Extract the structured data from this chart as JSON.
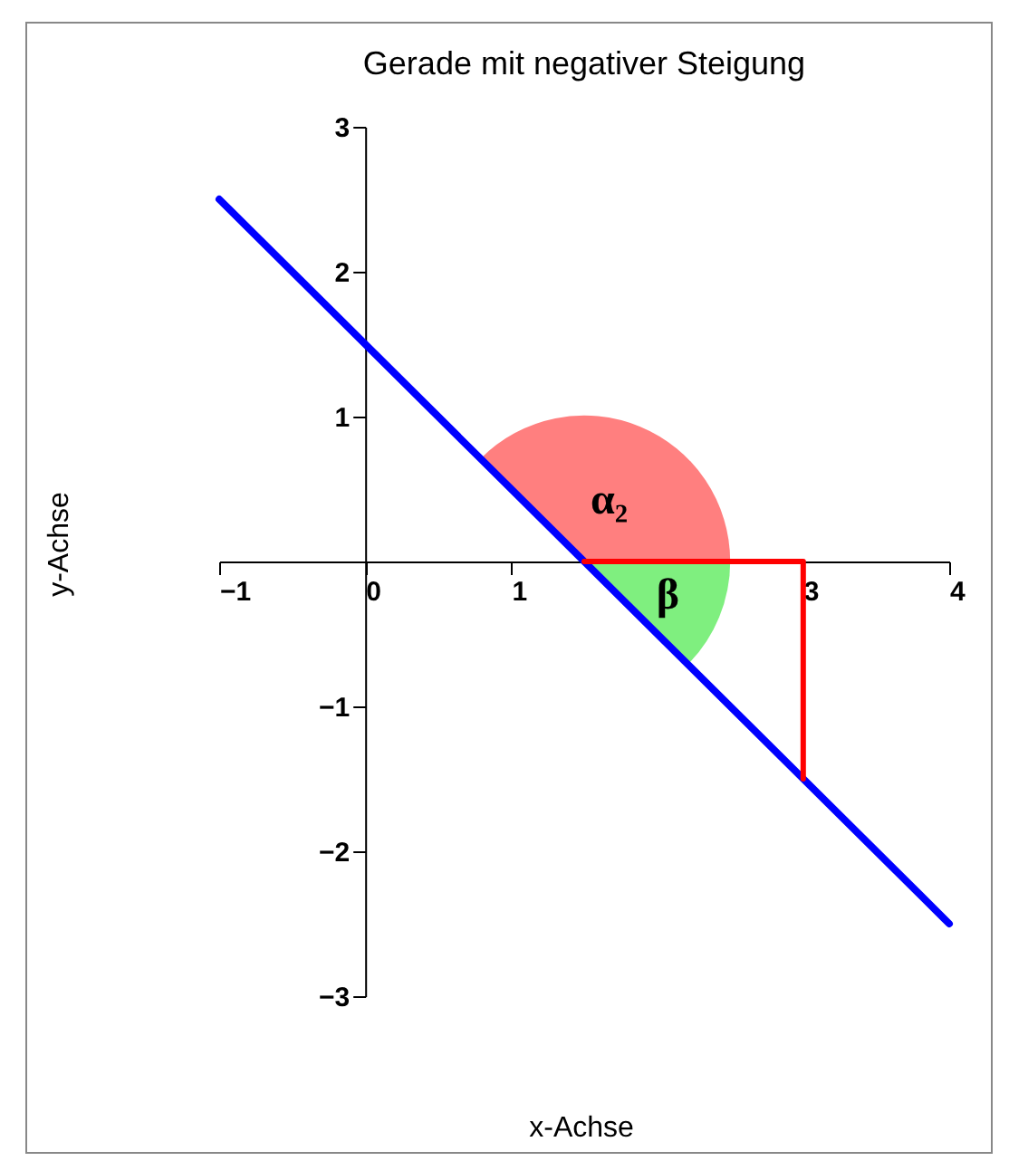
{
  "chart_data": {
    "type": "line",
    "title": "Gerade mit negativer Steigung",
    "xlabel": "x-Achse",
    "ylabel": "y-Achse",
    "xlim": [
      -1,
      4
    ],
    "ylim": [
      -3,
      3
    ],
    "xticks": [
      -1,
      0,
      1,
      {
        "value": 2,
        "label": null
      },
      3,
      4
    ],
    "yticks": [
      -3,
      -2,
      -1,
      1,
      2,
      3
    ],
    "series": [
      {
        "x": [
          -1,
          4
        ],
        "values": [
          2.5,
          -2.5
        ],
        "color": "#0000ff"
      },
      {
        "x": [
          1.5,
          3,
          3
        ],
        "values": [
          0,
          0,
          -1.5
        ],
        "color": "#ff0000"
      }
    ],
    "annotations": [
      "α₂",
      "β"
    ],
    "grid": false
  }
}
